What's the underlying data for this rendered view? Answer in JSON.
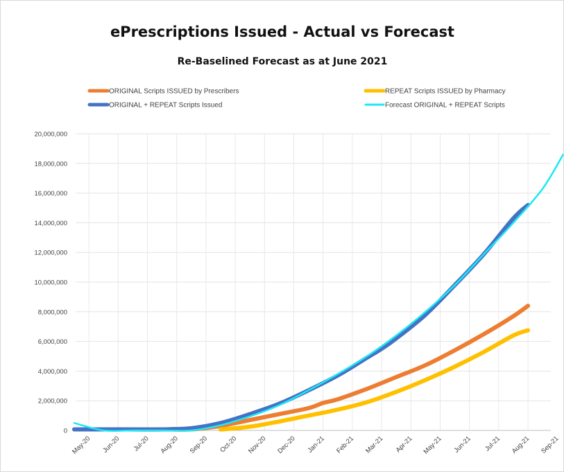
{
  "chart_data": {
    "type": "line",
    "title": "ePrescriptions Issued - Actual vs Forecast",
    "subtitle": "Re-Baselined Forecast as at June 2021",
    "ylim": [
      0,
      20000000
    ],
    "y_ticks": [
      {
        "value": 0,
        "label": "0"
      },
      {
        "value": 2000000,
        "label": "2,000,000"
      },
      {
        "value": 4000000,
        "label": "4,000,000"
      },
      {
        "value": 6000000,
        "label": "6,000,000"
      },
      {
        "value": 8000000,
        "label": "8,000,000"
      },
      {
        "value": 10000000,
        "label": "10,000,000"
      },
      {
        "value": 12000000,
        "label": "12,000,000"
      },
      {
        "value": 14000000,
        "label": "14,000,000"
      },
      {
        "value": 16000000,
        "label": "16,000,000"
      },
      {
        "value": 18000000,
        "label": "18,000,000"
      },
      {
        "value": 20000000,
        "label": "20,000,000"
      }
    ],
    "x_ticks": [
      "May-20",
      "Jun-20",
      "Jul-20",
      "Aug-20",
      "Sep-20",
      "Oct-20",
      "Nov-20",
      "Dec-20",
      "Jan-21",
      "Feb-21",
      "Mar-21",
      "Apr-21",
      "May-21",
      "Jun-21",
      "Jul-21",
      "Aug-21",
      "Sep-21"
    ],
    "x_unit": "month index (0 = May-20)",
    "grid": true,
    "legend_position": "top",
    "series": [
      {
        "name": "ORIGINAL Scripts ISSUED by Prescribers",
        "color": "#ed7d31",
        "width": 6,
        "points": [
          [
            0,
            0.07
          ],
          [
            1,
            0.07
          ],
          [
            2,
            0.07
          ],
          [
            3,
            0.07
          ],
          [
            4,
            0.07
          ],
          [
            5,
            0.3
          ],
          [
            6,
            0.7
          ],
          [
            7,
            1.1
          ],
          [
            8,
            1.5
          ],
          [
            8.5,
            1.85
          ],
          [
            9,
            2.1
          ],
          [
            10,
            2.8
          ],
          [
            11,
            3.6
          ],
          [
            12,
            4.4
          ],
          [
            13,
            5.4
          ],
          [
            14,
            6.5
          ],
          [
            15,
            7.7
          ],
          [
            15.5,
            8.4
          ]
        ]
      },
      {
        "name": "REPEAT Scripts ISSUED by Pharmacy",
        "color": "#ffc000",
        "width": 6,
        "points": [
          [
            5,
            0.06
          ],
          [
            6,
            0.25
          ],
          [
            7,
            0.6
          ],
          [
            8,
            1.0
          ],
          [
            9,
            1.4
          ],
          [
            10,
            1.9
          ],
          [
            11,
            2.6
          ],
          [
            12,
            3.4
          ],
          [
            13,
            4.3
          ],
          [
            14,
            5.3
          ],
          [
            15,
            6.4
          ],
          [
            15.5,
            6.75
          ]
        ]
      },
      {
        "name": "ORIGINAL + REPEAT Scripts Issued",
        "color": "#4472c4",
        "width": 6,
        "points": [
          [
            0,
            0.07
          ],
          [
            1,
            0.07
          ],
          [
            2,
            0.07
          ],
          [
            3,
            0.07
          ],
          [
            4,
            0.15
          ],
          [
            5,
            0.5
          ],
          [
            6,
            1.1
          ],
          [
            7,
            1.8
          ],
          [
            8,
            2.7
          ],
          [
            9,
            3.7
          ],
          [
            10,
            4.9
          ],
          [
            10.5,
            5.5
          ],
          [
            11,
            6.2
          ],
          [
            12,
            7.8
          ],
          [
            13,
            9.8
          ],
          [
            14,
            11.9
          ],
          [
            15,
            14.3
          ],
          [
            15.5,
            15.2
          ]
        ]
      },
      {
        "name": "Forecast ORIGINAL + REPEAT Scripts",
        "color": "#1be8f5",
        "width": 2.5,
        "points": [
          [
            0,
            0.5
          ],
          [
            1,
            0.0
          ],
          [
            2,
            0.0
          ],
          [
            3,
            0.0
          ],
          [
            4,
            0.0
          ],
          [
            5,
            0.35
          ],
          [
            6,
            0.95
          ],
          [
            7,
            1.7
          ],
          [
            8,
            2.7
          ],
          [
            9,
            3.8
          ],
          [
            10,
            5.0
          ],
          [
            11,
            6.4
          ],
          [
            12,
            8.0
          ],
          [
            13,
            9.8
          ],
          [
            14,
            11.9
          ],
          [
            15,
            14.0
          ],
          [
            16,
            16.3
          ],
          [
            16.7,
            18.6
          ]
        ]
      }
    ]
  }
}
